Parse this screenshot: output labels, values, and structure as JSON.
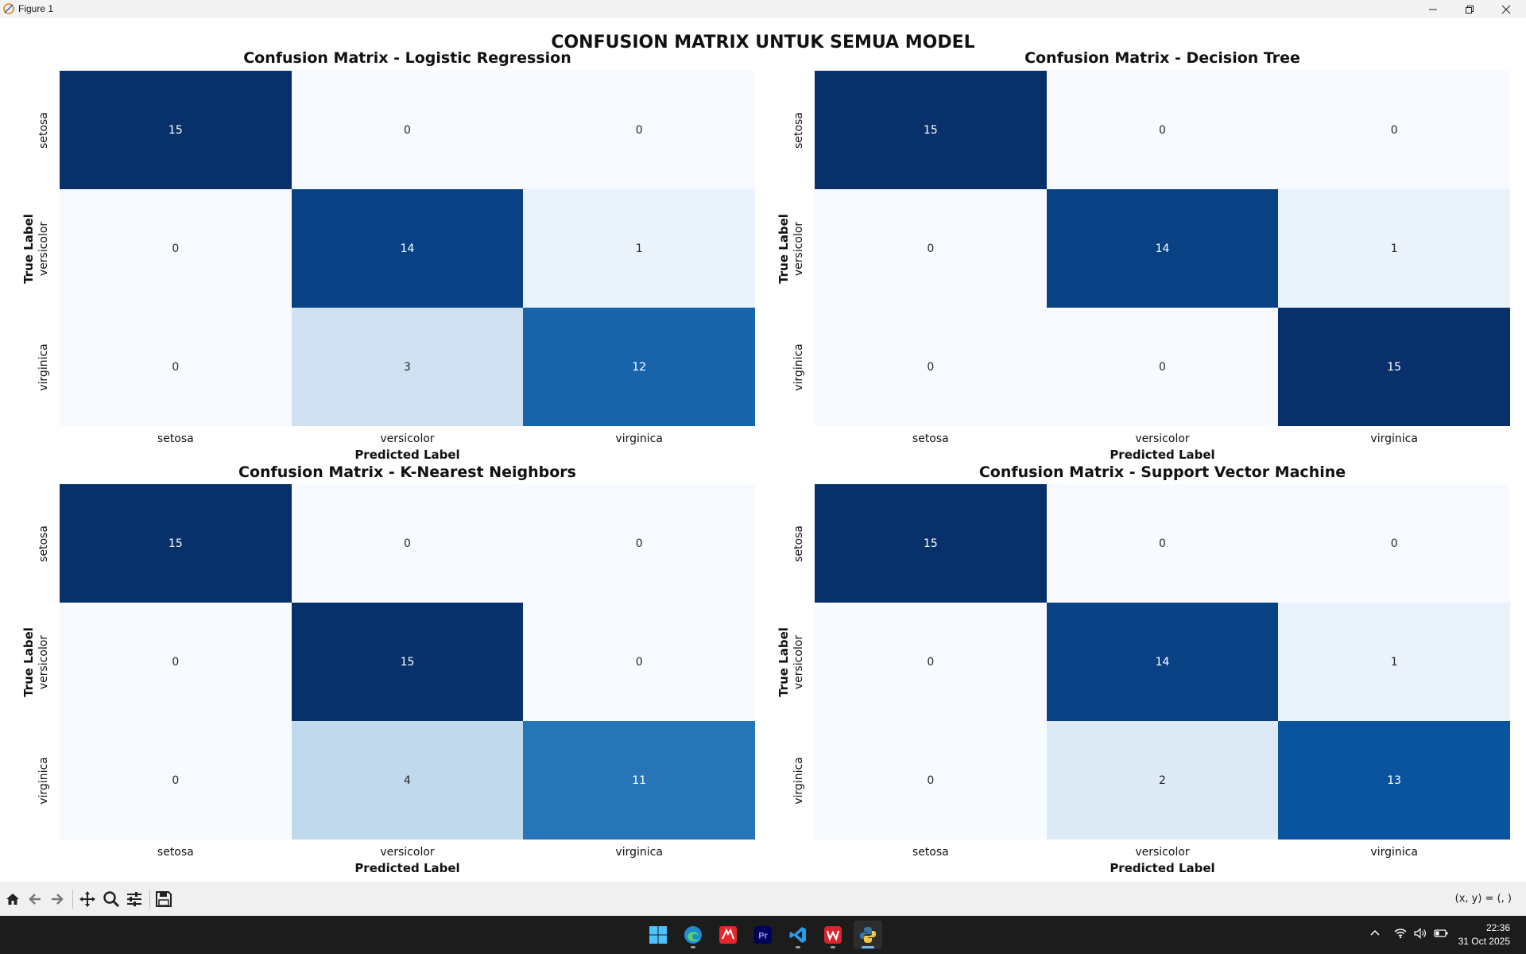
{
  "window": {
    "title": "Figure 1",
    "icon": "python-figure-icon",
    "controls": [
      "minimize-icon",
      "restore-icon",
      "close-icon"
    ]
  },
  "figure": {
    "suptitle": "CONFUSION MATRIX UNTUK SEMUA MODEL"
  },
  "chart_data": [
    {
      "type": "heatmap",
      "title": "Confusion Matrix - Logistic Regression",
      "xlabel": "Predicted Label",
      "ylabel": "True Label",
      "x_categories": [
        "setosa",
        "versicolor",
        "virginica"
      ],
      "y_categories": [
        "setosa",
        "versicolor",
        "virginica"
      ],
      "values": [
        [
          15,
          0,
          0
        ],
        [
          0,
          14,
          1
        ],
        [
          0,
          3,
          12
        ]
      ],
      "colormap": "Blues",
      "vmax": 15
    },
    {
      "type": "heatmap",
      "title": "Confusion Matrix - Decision Tree",
      "xlabel": "Predicted Label",
      "ylabel": "True Label",
      "x_categories": [
        "setosa",
        "versicolor",
        "virginica"
      ],
      "y_categories": [
        "setosa",
        "versicolor",
        "virginica"
      ],
      "values": [
        [
          15,
          0,
          0
        ],
        [
          0,
          14,
          1
        ],
        [
          0,
          0,
          15
        ]
      ],
      "colormap": "Blues",
      "vmax": 15
    },
    {
      "type": "heatmap",
      "title": "Confusion Matrix - K-Nearest Neighbors",
      "xlabel": "Predicted Label",
      "ylabel": "True Label",
      "x_categories": [
        "setosa",
        "versicolor",
        "virginica"
      ],
      "y_categories": [
        "setosa",
        "versicolor",
        "virginica"
      ],
      "values": [
        [
          15,
          0,
          0
        ],
        [
          0,
          15,
          0
        ],
        [
          0,
          4,
          11
        ]
      ],
      "colormap": "Blues",
      "vmax": 15
    },
    {
      "type": "heatmap",
      "title": "Confusion Matrix - Support Vector Machine",
      "xlabel": "Predicted Label",
      "ylabel": "True Label",
      "x_categories": [
        "setosa",
        "versicolor",
        "virginica"
      ],
      "y_categories": [
        "setosa",
        "versicolor",
        "virginica"
      ],
      "values": [
        [
          15,
          0,
          0
        ],
        [
          0,
          14,
          1
        ],
        [
          0,
          2,
          13
        ]
      ],
      "colormap": "Blues",
      "vmax": 15
    }
  ],
  "toolbar": {
    "buttons": [
      "home-icon",
      "back-icon",
      "forward-icon",
      "pan-icon",
      "zoom-icon",
      "configure-subplots-icon",
      "save-icon"
    ],
    "coords": "(x, y) = (, )"
  },
  "taskbar": {
    "apps": [
      "start-icon",
      "edge-icon",
      "wps-pdf-icon",
      "premiere-pro-icon",
      "vscode-icon",
      "wps-office-icon",
      "python-icon"
    ],
    "active_app": "python-icon",
    "tray": [
      "chevron-up-icon",
      "wifi-icon",
      "volume-icon",
      "battery-icon"
    ],
    "time": "22:36",
    "date": "31 Oct 2025"
  }
}
